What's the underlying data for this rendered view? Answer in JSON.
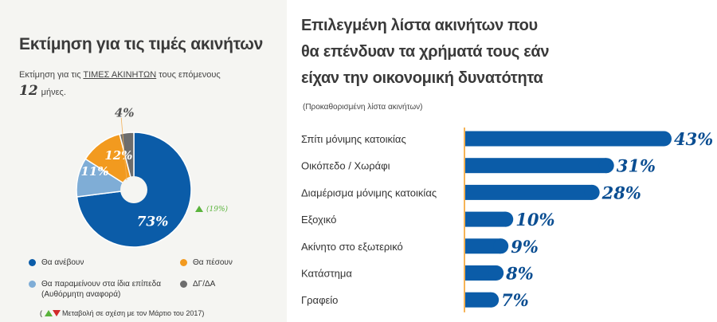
{
  "left": {
    "title": "Εκτίμηση για τις τιμές ακινήτων",
    "subtitle_pre": "Εκτίμηση για τις ",
    "subtitle_link": "ΤΙΜΕΣ ΑΚΙΝΗΤΩΝ",
    "subtitle_post": " τους επόμενους",
    "months_num": "12",
    "months_word": "μήνες.",
    "change_note": "(19%)",
    "footnote": "Μεταβολή σε σχέση με τον Μάρτιο του 2017)",
    "footnote_open": "(",
    "legend": [
      {
        "label": "Θα ανέβουν",
        "color": "#0b5ca8"
      },
      {
        "label": "Θα πέσουν",
        "color": "#f29a1f"
      },
      {
        "label": "Θα παραμείνουν στα ίδια επίπεδα",
        "sublabel": "(Αυθόρμητη αναφορά)",
        "color": "#7fadd6"
      },
      {
        "label": "ΔΓ/ΔΑ",
        "color": "#6d6d6d"
      }
    ]
  },
  "chart_data": [
    {
      "type": "pie",
      "title": "Εκτίμηση για τις τιμές ακινήτων",
      "categories": [
        "Θα ανέβουν",
        "Θα παραμείνουν στα ίδια επίπεδα",
        "Θα πέσουν",
        "ΔΓ/ΔΑ"
      ],
      "values": [
        73,
        11,
        12,
        4
      ],
      "labels": [
        "73%",
        "11%",
        "12%",
        "4%"
      ],
      "colors": [
        "#0b5ca8",
        "#7fadd6",
        "#f29a1f",
        "#6d6d6d"
      ],
      "annotation": "▲ (19%)"
    },
    {
      "type": "bar",
      "orientation": "horizontal",
      "title": "Επιλεγμένη λίστα ακινήτων που θα επένδυαν τα χρήματά τους εάν είχαν την οικονομική δυνατότητα",
      "subtitle": "(Προκαθορισμένη λίστα ακινήτων)",
      "categories": [
        "Σπίτι μόνιμης κατοικίας",
        "Οικόπεδο / Χωράφι",
        "Διαμέρισμα μόνιμης κατοικίας",
        "Εξοχικό",
        "Ακίνητο στο εξωτερικό",
        "Κατάστημα",
        "Γραφείο"
      ],
      "values": [
        43,
        31,
        28,
        10,
        9,
        8,
        7
      ],
      "labels": [
        "43%",
        "31%",
        "28%",
        "10%",
        "9%",
        "8%",
        "7%"
      ],
      "color": "#0b5ca8",
      "axis_color": "#f29a1f"
    }
  ],
  "right": {
    "title_lines": [
      "Επιλεγμένη λίστα ακινήτων που",
      "θα επένδυαν τα χρήματά τους εάν",
      "είχαν την οικονομική δυνατότητα"
    ],
    "note": "(Προκαθορισμένη λίστα ακινήτων)"
  }
}
